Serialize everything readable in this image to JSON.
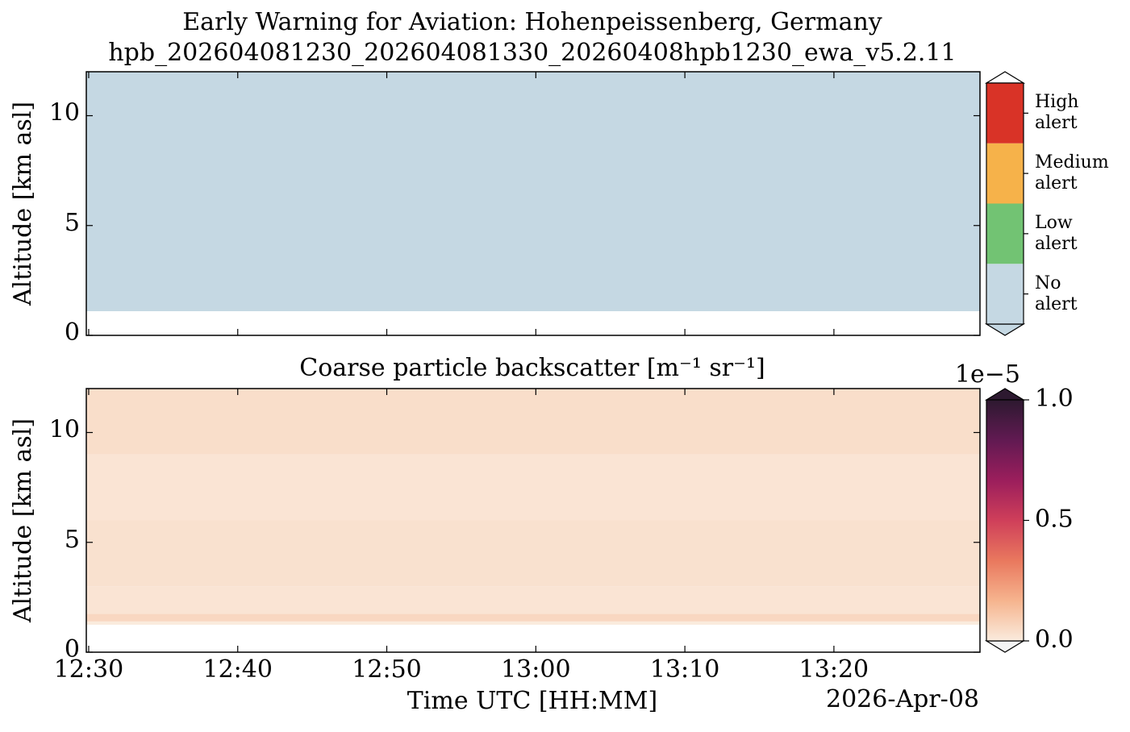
{
  "chart_data": [
    {
      "type": "category-layers",
      "title": "Early Warning for Aviation: Hohenpeissenberg, Germany",
      "subtitle": "hpb_202604081230_202604081330_20260408hpb1230_ewa_v5.2.11",
      "ylabel": "Altitude [km asl]",
      "xlim": [
        749.84,
        809.8
      ],
      "xticks": [
        750,
        760,
        770,
        780,
        790,
        800
      ],
      "ylim": [
        0,
        12
      ],
      "yticks": [
        0,
        5,
        10
      ],
      "categories": [
        "No\nalert",
        "Low\nalert",
        "Medium\nalert",
        "High\nalert"
      ],
      "colors": [
        "#c5d8e3",
        "#72c373",
        "#f6b24a",
        "#d93327"
      ],
      "layers": [
        {
          "from": 1.1,
          "to": 12,
          "color": "#c5d8e3"
        }
      ]
    },
    {
      "type": "heatmap",
      "title": "Coarse particle backscatter [m⁻¹ sr⁻¹]",
      "ylabel": "Altitude [km asl]",
      "xlabel": "Time UTC [HH:MM]",
      "date": "2026-Apr-08",
      "xlim": [
        749.84,
        809.8
      ],
      "xticks": [
        {
          "value": 750,
          "label": "12:30"
        },
        {
          "value": 760,
          "label": "12:40"
        },
        {
          "value": 770,
          "label": "12:50"
        },
        {
          "value": 780,
          "label": "13:00"
        },
        {
          "value": 790,
          "label": "13:10"
        },
        {
          "value": 800,
          "label": "13:20"
        }
      ],
      "ylim": [
        0,
        12
      ],
      "yticks": [
        0,
        5,
        10
      ],
      "altitude_bins": [
        1.25,
        1.4,
        1.75,
        3,
        6,
        9,
        12
      ],
      "values": [
        0.0,
        0.06,
        0.02,
        0.03,
        0.02,
        0.04
      ],
      "clim": [
        0,
        1
      ],
      "cbar_ticks": [
        {
          "value": 0,
          "label": "0.0"
        },
        0.5,
        {
          "value": 1,
          "label": "1.0"
        }
      ],
      "cbar_offset": "1e−5",
      "colormap": [
        "#faebdd",
        "#f6b48e",
        "#e9785e",
        "#cf3f5a",
        "#9b1e5c",
        "#611a52",
        "#2d1930"
      ],
      "under_color": "#f4f4f4"
    }
  ]
}
